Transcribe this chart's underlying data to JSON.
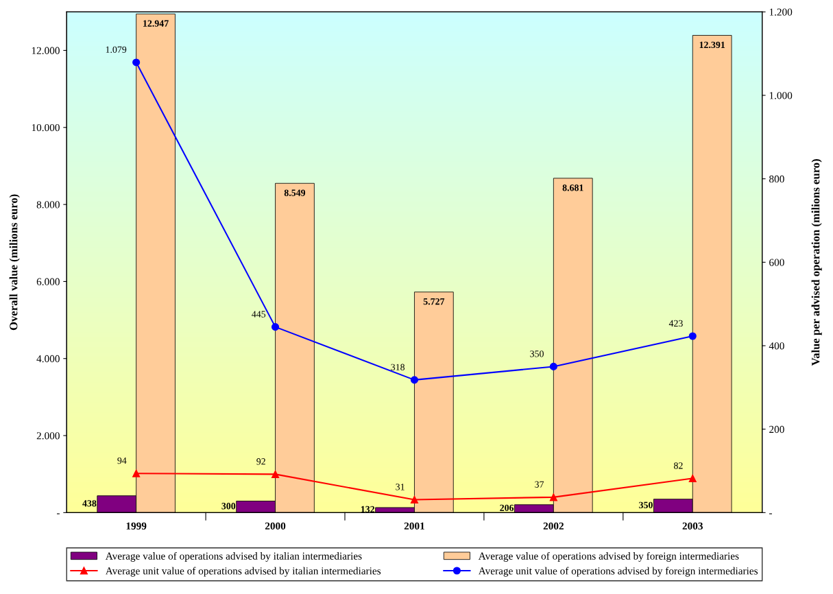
{
  "chart_data": {
    "type": "bar",
    "categories": [
      "1999",
      "2000",
      "2001",
      "2002",
      "2003"
    ],
    "ylabel": "Overall value (milions euro)",
    "y2label": "Value per advised operation (milions euro)",
    "ylim": [
      0,
      13000
    ],
    "yticks": [
      {
        "value": 0,
        "label": "-"
      },
      {
        "value": 2000,
        "label": "2.000"
      },
      {
        "value": 4000,
        "label": "4.000"
      },
      {
        "value": 6000,
        "label": "6.000"
      },
      {
        "value": 8000,
        "label": "8.000"
      },
      {
        "value": 10000,
        "label": "10.000"
      },
      {
        "value": 12000,
        "label": "12.000"
      }
    ],
    "y2lim": [
      0,
      1200
    ],
    "y2ticks": [
      {
        "value": 0,
        "label": "-"
      },
      200,
      400,
      600,
      800,
      {
        "value": 1000,
        "label": "1.000"
      },
      {
        "value": 1200,
        "label": "1.200"
      }
    ],
    "legend": "bottom",
    "grid": false,
    "series": [
      {
        "name": "Average value of operations advised by italian intermediaries",
        "color": "#800080",
        "values": [
          438,
          300,
          132,
          206,
          350
        ],
        "value_labels": [
          "438",
          "300",
          "132",
          "206",
          "350"
        ]
      },
      {
        "name": "Average value of operations advised by foreign intermediaries",
        "color": "#ffcc99",
        "values": [
          12947,
          8549,
          5727,
          8681,
          12391
        ],
        "value_labels": [
          "12.947",
          "8.549",
          "5.727",
          "8.681",
          "12.391"
        ]
      },
      {
        "name": "Average unit value of operations advised by italian intermediaries",
        "type": "line",
        "axis": "y2",
        "color": "#ff0000",
        "marker": "triangle",
        "values": [
          94,
          92,
          31,
          37,
          82
        ],
        "value_labels": [
          "94",
          "92",
          "31",
          "37",
          "82"
        ]
      },
      {
        "name": "Average unit value of operations advised by foreign intermediaries",
        "type": "line",
        "axis": "y2",
        "color": "#0000ff",
        "marker": "circle",
        "values": [
          1079,
          445,
          318,
          350,
          423
        ],
        "value_labels": [
          "1.079",
          "445",
          "318",
          "350",
          "423"
        ]
      }
    ]
  }
}
